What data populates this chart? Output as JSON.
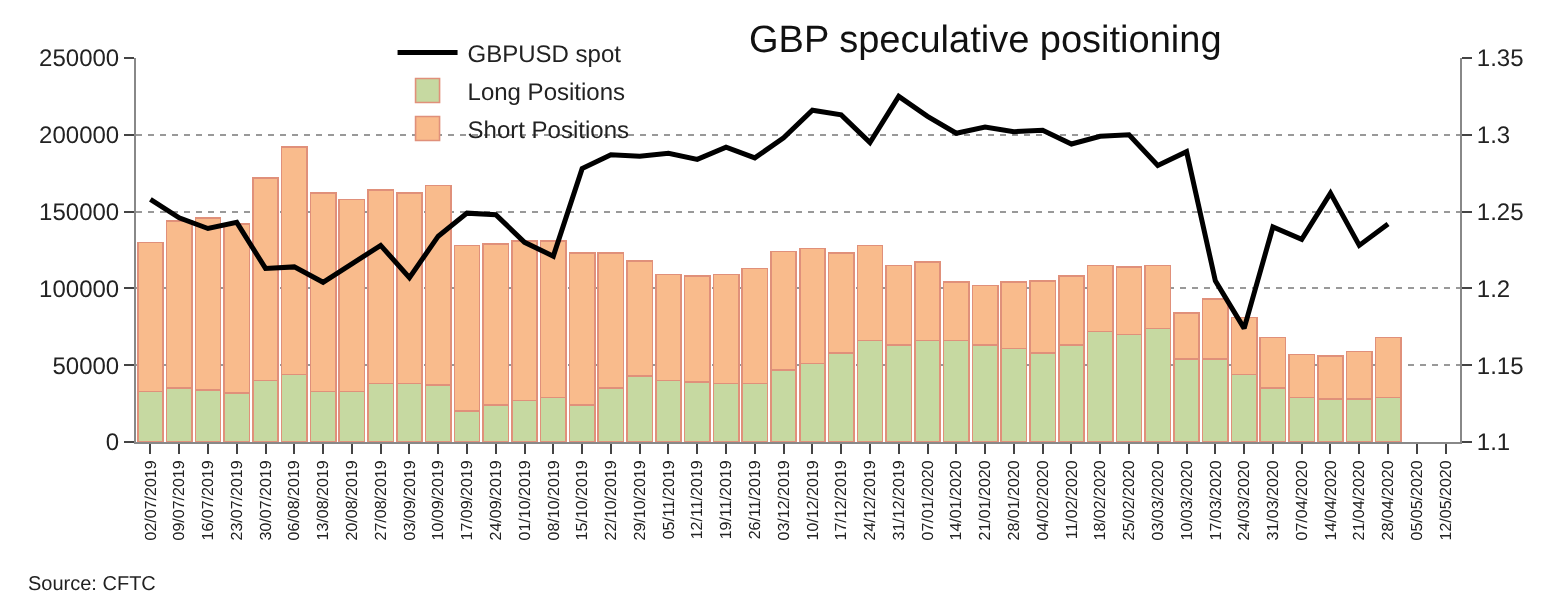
{
  "chart_data": {
    "type": "bar",
    "stacked": true,
    "title": "GBP speculative positioning",
    "categories": [
      "02/07/2019",
      "09/07/2019",
      "16/07/2019",
      "23/07/2019",
      "30/07/2019",
      "06/08/2019",
      "13/08/2019",
      "20/08/2019",
      "27/08/2019",
      "03/09/2019",
      "10/09/2019",
      "17/09/2019",
      "24/09/2019",
      "01/10/2019",
      "08/10/2019",
      "15/10/2019",
      "22/10/2019",
      "29/10/2019",
      "05/11/2019",
      "12/11/2019",
      "19/11/2019",
      "26/11/2019",
      "03/12/2019",
      "10/12/2019",
      "17/12/2019",
      "24/12/2019",
      "31/12/2019",
      "07/01/2020",
      "14/01/2020",
      "21/01/2020",
      "28/01/2020",
      "04/02/2020",
      "11/02/2020",
      "18/02/2020",
      "25/02/2020",
      "03/03/2020",
      "10/03/2020",
      "17/03/2020",
      "24/03/2020",
      "31/03/2020",
      "07/04/2020",
      "14/04/2020",
      "21/04/2020",
      "28/04/2020",
      "05/05/2020",
      "12/05/2020"
    ],
    "series": [
      {
        "name": "Long Positions",
        "color": "#c6d9a1",
        "values": [
          33000,
          35000,
          34000,
          32000,
          40000,
          44000,
          33000,
          33000,
          38000,
          38000,
          37000,
          20000,
          24000,
          27000,
          29000,
          24000,
          35000,
          43000,
          40000,
          39000,
          38000,
          38000,
          47000,
          51000,
          58000,
          66000,
          63000,
          66000,
          66000,
          63000,
          61000,
          58000,
          63000,
          72000,
          70000,
          74000,
          54000,
          54000,
          44000,
          35000,
          29000,
          28000,
          28000,
          29000,
          null,
          null
        ]
      },
      {
        "name": "Short Positions",
        "color": "#f9bb8c",
        "values": [
          97000,
          109000,
          112000,
          110000,
          132000,
          148000,
          129000,
          125000,
          126000,
          124000,
          130000,
          108000,
          105000,
          104000,
          102000,
          99000,
          88000,
          75000,
          69000,
          69000,
          71000,
          75000,
          77000,
          75000,
          65000,
          62000,
          52000,
          51000,
          38000,
          39000,
          43000,
          47000,
          45000,
          43000,
          44000,
          41000,
          30000,
          39000,
          37000,
          33000,
          28000,
          28000,
          31000,
          39000,
          null,
          null
        ]
      },
      {
        "name": "GBPUSD spot",
        "type": "line",
        "axis": "y2",
        "color": "#000000",
        "values": [
          1.258,
          1.246,
          1.239,
          1.243,
          1.213,
          1.214,
          1.204,
          1.216,
          1.228,
          1.207,
          1.234,
          1.249,
          1.248,
          1.23,
          1.221,
          1.278,
          1.287,
          1.286,
          1.288,
          1.284,
          1.292,
          1.285,
          1.298,
          1.316,
          1.313,
          1.295,
          1.325,
          1.312,
          1.301,
          1.305,
          1.302,
          1.303,
          1.294,
          1.299,
          1.3,
          1.28,
          1.289,
          1.205,
          1.174,
          1.24,
          1.232,
          1.262,
          1.228,
          1.242,
          null,
          null
        ]
      }
    ],
    "ylim": [
      0,
      250000
    ],
    "yticks": [
      0,
      50000,
      100000,
      150000,
      200000,
      250000
    ],
    "y2lim": [
      1.1,
      1.35
    ],
    "y2ticks": [
      1.1,
      1.15,
      1.2,
      1.25,
      1.3,
      1.35
    ],
    "grid": "y",
    "legend": "top left",
    "line_style": "solid",
    "marker": "none",
    "annotations": [
      "Source: CFTC"
    ]
  }
}
